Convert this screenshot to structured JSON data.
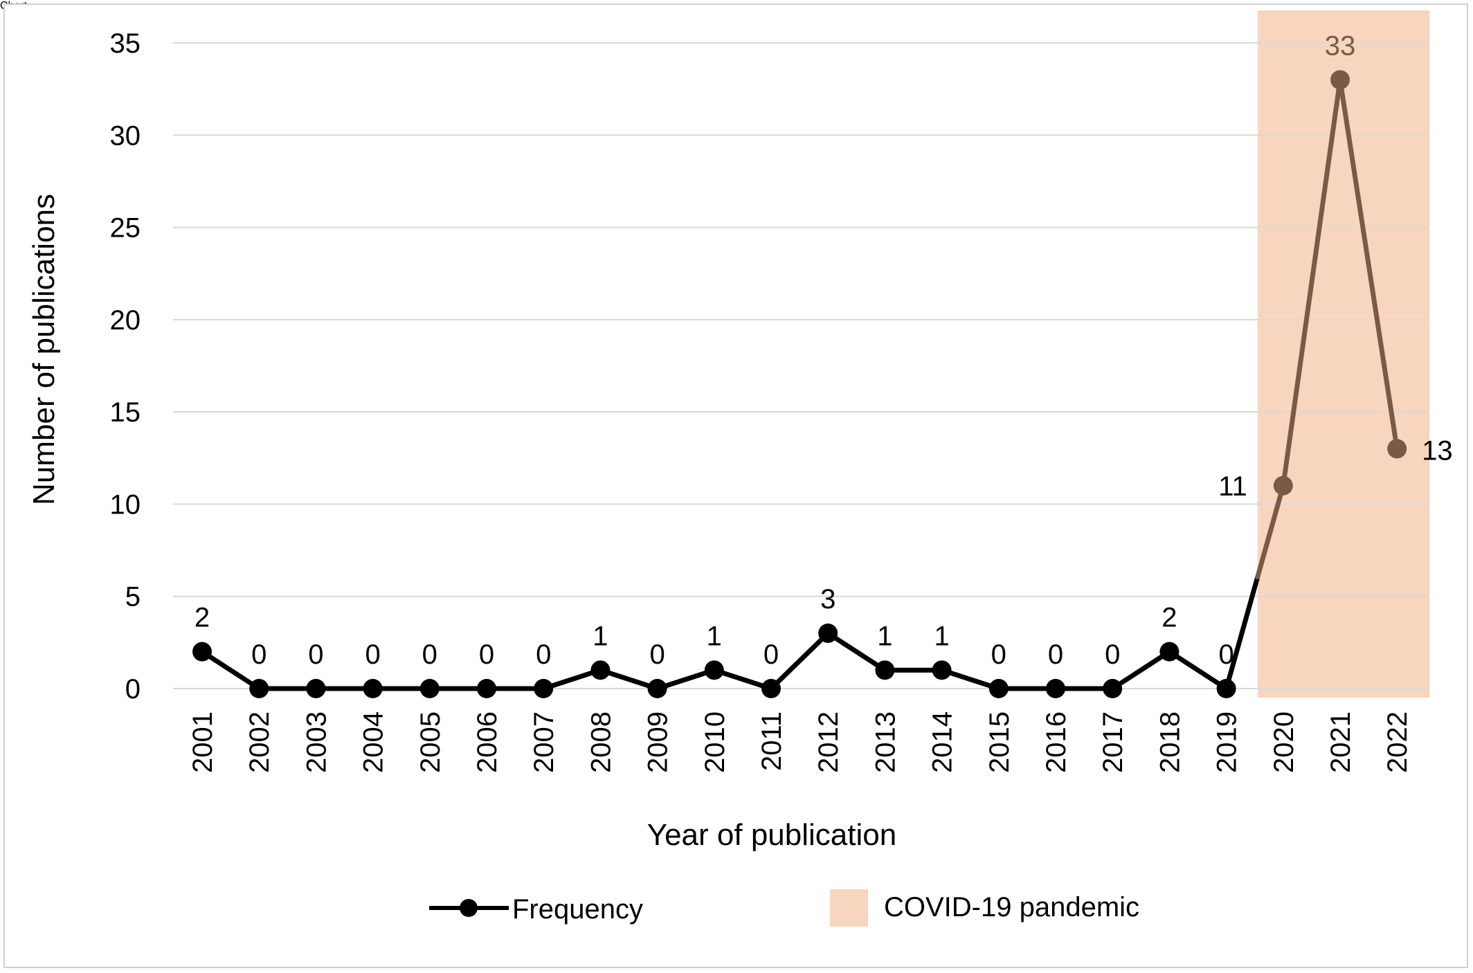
{
  "chart_data": {
    "type": "line",
    "title": "",
    "xlabel": "Year of publication",
    "ylabel": "Number of publications",
    "ylim": [
      0,
      35
    ],
    "yticks": [
      0,
      5,
      10,
      15,
      20,
      25,
      30,
      35
    ],
    "grid": true,
    "categories": [
      "2001",
      "2002",
      "2003",
      "2004",
      "2005",
      "2006",
      "2007",
      "2008",
      "2009",
      "2010",
      "2011",
      "2012",
      "2013",
      "2014",
      "2015",
      "2016",
      "2017",
      "2018",
      "2019",
      "2020",
      "2021",
      "2022"
    ],
    "series": [
      {
        "name": "Frequency",
        "values": [
          2,
          0,
          0,
          0,
          0,
          0,
          0,
          1,
          0,
          1,
          0,
          3,
          1,
          1,
          0,
          0,
          0,
          2,
          0,
          11,
          33,
          13
        ],
        "color": "#000000",
        "highlight_color": "#7a5a44"
      }
    ],
    "shaded_region": {
      "label": "COVID-19 pandemic",
      "x_start": "2020",
      "x_end": "2022",
      "color": "#f8d5be"
    },
    "legend": {
      "position": "bottom",
      "items": [
        "Frequency",
        "COVID-19 pandemic"
      ]
    }
  }
}
